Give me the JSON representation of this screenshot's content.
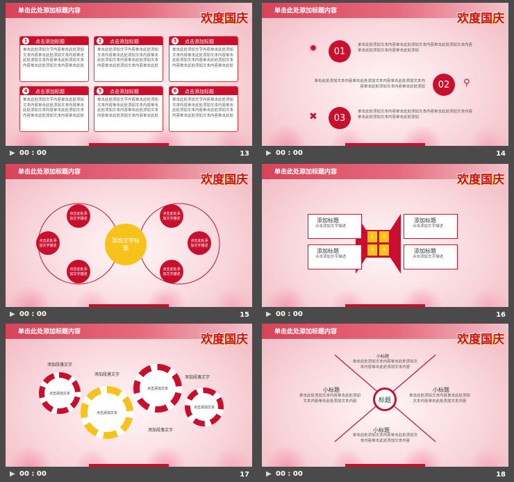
{
  "slides": [
    {
      "num": "13",
      "header": "单击此处添加标题内容",
      "time": "00 : 00",
      "cards": [
        {
          "n": "1",
          "title": "点击添加标题"
        },
        {
          "n": "2",
          "title": "点击添加标题"
        },
        {
          "n": "3",
          "title": "点击添加标题"
        },
        {
          "n": "4",
          "title": "点击添加标题"
        },
        {
          "n": "5",
          "title": "点击添加标题"
        },
        {
          "n": "6",
          "title": "点击添加标题"
        }
      ],
      "body": "单击此处添加文字内容单击此处添加文本内容单击此处添加文本内容单击此处添加文本内容单击此处添加文本内容单击此处添加文本内容单击此处"
    },
    {
      "num": "14",
      "header": "单击此处添加标题内容",
      "time": "00 : 00",
      "items": [
        {
          "n": "01",
          "text": "单击此处添加文本内容单击此处添加文本内容单击此处添加文本内容单击此处添加文本内容单击此处添加"
        },
        {
          "n": "02",
          "text": "单击此处添加文本内容单击此处添加文本内容单击此处添加文本内容单击此处添加文本内容单击此处添加"
        },
        {
          "n": "03",
          "text": "单击此处添加文本内容单击此处添加文本内容单击此处添加文本内容单击此处添加文本内容单击此处添加"
        }
      ]
    },
    {
      "num": "15",
      "header": "单击此处添加标题内容",
      "time": "00 : 00",
      "center": "添加文字标题",
      "node": "点击此处添加文字描述"
    },
    {
      "num": "16",
      "header": "单击此处添加标题内容",
      "time": "00 : 00",
      "box_title": "添加标题",
      "box_text": "点击添加文字描述",
      "center_nums": [
        "1",
        "2",
        "3",
        "4"
      ]
    },
    {
      "num": "17",
      "header": "单击此处添加标题内容",
      "time": "00 : 00",
      "gear_label": "添加段落文字",
      "gear_text": "点击添加文本"
    },
    {
      "num": "18",
      "header": "单击此处添加标题内容",
      "time": "00 : 00",
      "center": "标题",
      "sub": "小标题",
      "sub_text": "单击此处添加文本内容单击此处添加文本内容单击此处添加文本内容"
    }
  ],
  "logo": "欢度国庆"
}
